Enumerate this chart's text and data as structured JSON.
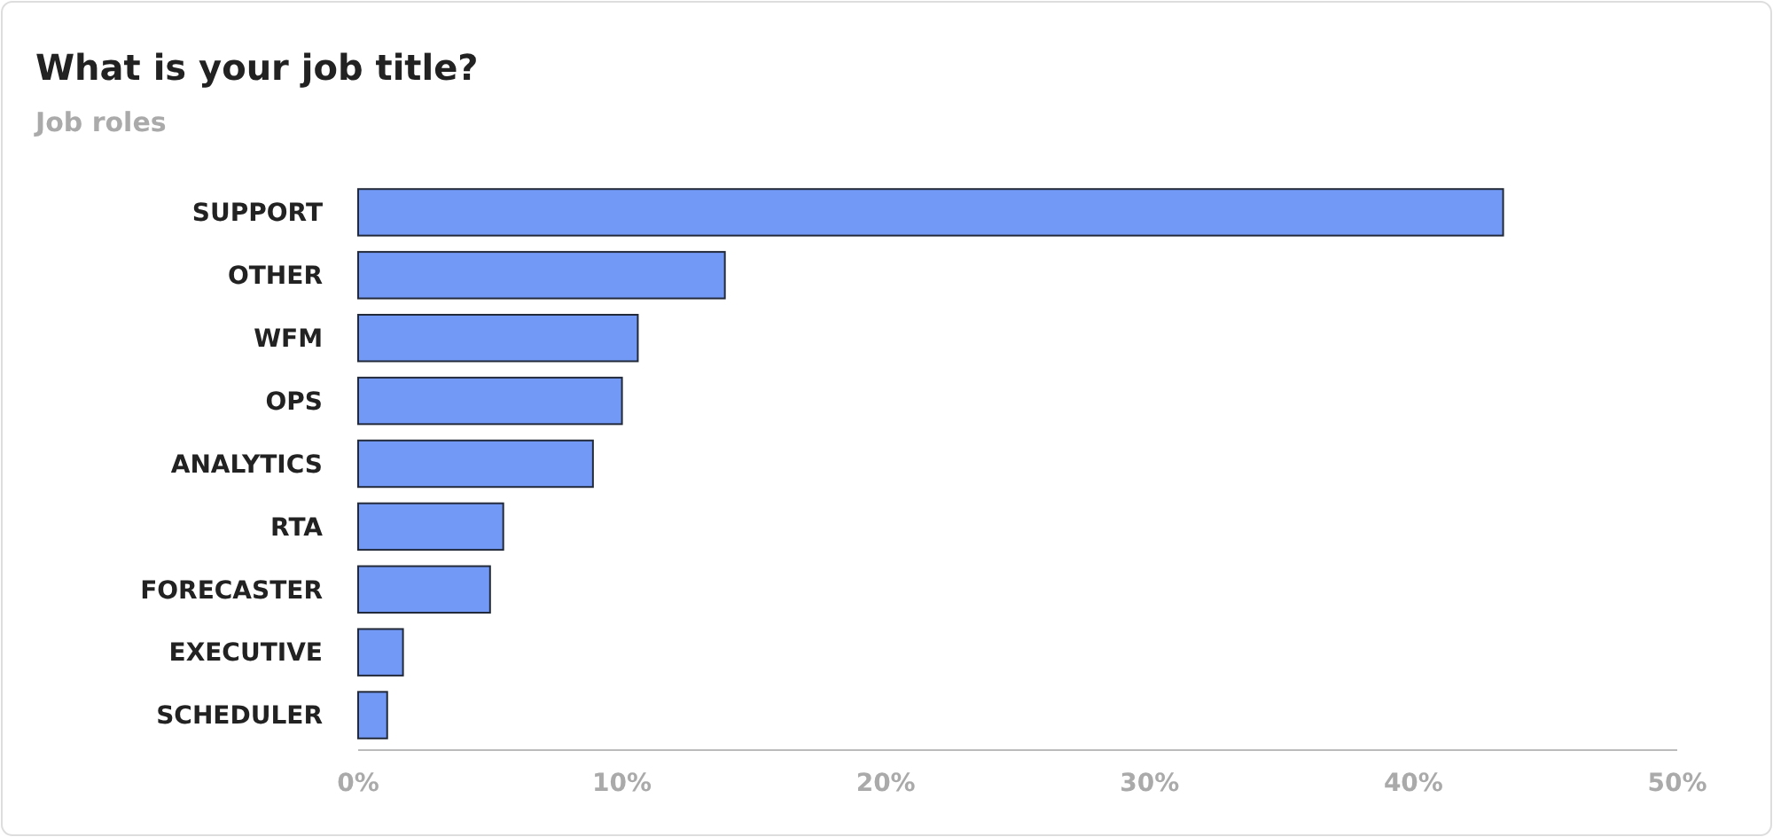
{
  "chart_data": {
    "type": "bar",
    "orientation": "horizontal",
    "title": "What is your job title?",
    "subtitle": "Job roles",
    "categories": [
      "SUPPORT",
      "OTHER",
      "WFM",
      "OPS",
      "ANALYTICS",
      "RTA",
      "FORECASTER",
      "EXECUTIVE",
      "SCHEDULER"
    ],
    "values": [
      43.4,
      13.9,
      10.6,
      10.0,
      8.9,
      5.5,
      5.0,
      1.7,
      1.1
    ],
    "color": "#7399f7",
    "xlim": [
      0,
      50
    ],
    "xticks": [
      {
        "value": 0,
        "label": "0%"
      },
      {
        "value": 10,
        "label": "10%"
      },
      {
        "value": 20,
        "label": "20%"
      },
      {
        "value": 30,
        "label": "30%"
      },
      {
        "value": 40,
        "label": "40%"
      },
      {
        "value": 50,
        "label": "50%"
      }
    ],
    "grid": false
  }
}
